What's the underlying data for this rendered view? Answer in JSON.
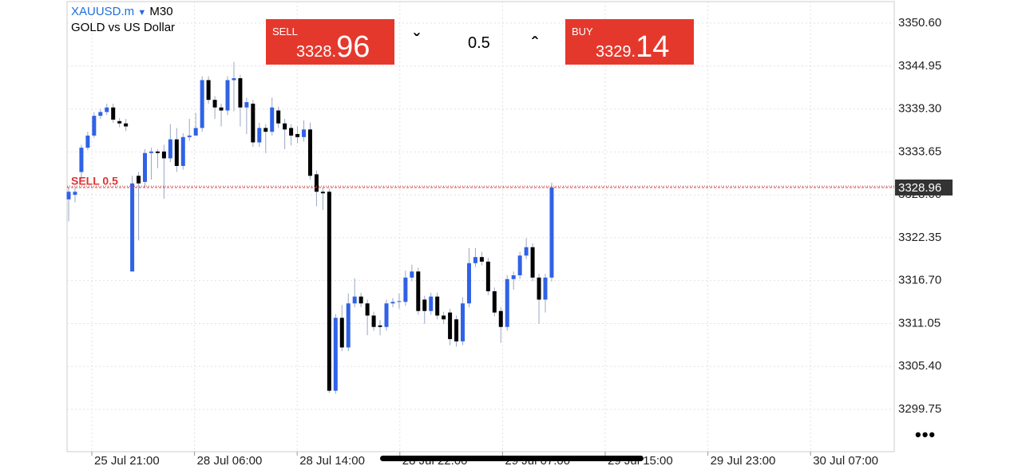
{
  "header": {
    "symbol": "XAUUSD.m",
    "timeframe": "M30",
    "description": "GOLD vs US Dollar"
  },
  "trade_panel": {
    "sell_label": "SELL",
    "sell_price_small": "3328.",
    "sell_price_big": "96",
    "volume": "0.5",
    "buy_label": "BUY",
    "buy_price_small": "3329.",
    "buy_price_big": "14"
  },
  "chart_data": {
    "type": "candlestick",
    "up_color": "#2f62e6",
    "down_color": "#000000",
    "ylim": [
      3294.18,
      3353.44
    ],
    "yticks": [
      {
        "value": 3350.6,
        "label": "3350.60"
      },
      {
        "value": 3344.95,
        "label": "3344.95"
      },
      {
        "value": 3339.3,
        "label": "3339.30"
      },
      {
        "value": 3333.65,
        "label": "3333.65"
      },
      {
        "value": 3328,
        "label": "3328.00"
      },
      {
        "value": 3322.35,
        "label": "3322.35"
      },
      {
        "value": 3316.7,
        "label": "3316.70"
      },
      {
        "value": 3311.05,
        "label": "3311.05"
      },
      {
        "value": 3305.4,
        "label": "3305.40"
      },
      {
        "value": 3299.75,
        "label": "3299.75"
      }
    ],
    "x_labels": [
      "25 Jul 21:00",
      "28 Jul 06:00",
      "28 Jul 14:00",
      "28 Jul 22:00",
      "29 Jul 07:00",
      "29 Jul 15:00",
      "29 Jul 23:00",
      "30 Jul 07:00"
    ],
    "grid": true,
    "sell_line": 3328.96,
    "buy_line": 3329.14,
    "annotation": "SELL 0.5",
    "open": [
      3327.4,
      3328.0,
      3331.0,
      3334.2,
      3335.8,
      3338.4,
      3338.9,
      3339.5,
      3337.7,
      3337.4,
      3317.9,
      3330.5,
      3329.7,
      3333.5,
      3333.7,
      3333.7,
      3332.8,
      3335.3,
      3331.8,
      3335.6,
      3335.8,
      3336.8,
      3343.1,
      3340.5,
      3339.5,
      3339.1,
      3343.1,
      3343.35,
      3339.5,
      3340.0,
      3334.9,
      3336.8,
      3336.3,
      3339.1,
      3337.4,
      3336.8,
      3336.0,
      3335.6,
      3336.6,
      3330.7,
      3328.4,
      3328.4,
      3302.2,
      3311.8,
      3307.9,
      3313.7,
      3314.6,
      3313.7,
      3312.1,
      3310.8,
      3310.6,
      3313.7,
      3313.9,
      3313.9,
      3317.1,
      3317.9,
      3314.2,
      3312.7,
      3314.6,
      3312.1,
      3312.5,
      3311.6,
      3308.7,
      3313.7,
      3319.0,
      3319.8,
      3319.2,
      3315.3,
      3312.7,
      3310.6,
      3316.9,
      3317.4,
      3320.0,
      3321.1,
      3317.1,
      3314.2,
      3317.1
    ],
    "high": [
      3329.0,
      3329.0,
      3334.6,
      3336.3,
      3338.9,
      3339.3,
      3340.0,
      3340.0,
      3338.1,
      3338.0,
      3330.5,
      3331.0,
      3334.0,
      3334.2,
      3334.0,
      3334.6,
      3337.3,
      3336.8,
      3336.1,
      3338.0,
      3338.8,
      3343.6,
      3343.6,
      3341.0,
      3340.0,
      3343.6,
      3345.5,
      3343.8,
      3340.8,
      3340.5,
      3337.5,
      3337.3,
      3340.8,
      3339.6,
      3338.0,
      3337.3,
      3337.0,
      3337.8,
      3337.5,
      3331.2,
      3329.0,
      3328.8,
      3312.3,
      3313.5,
      3315.0,
      3317.0,
      3315.1,
      3314.2,
      3312.6,
      3311.5,
      3314.2,
      3314.4,
      3315.0,
      3318.0,
      3318.8,
      3318.4,
      3314.7,
      3315.1,
      3315.1,
      3312.6,
      3313.0,
      3312.1,
      3314.5,
      3321.0,
      3321.0,
      3320.5,
      3319.7,
      3315.8,
      3313.2,
      3317.4,
      3317.9,
      3320.5,
      3322.3,
      3321.6,
      3317.6,
      3317.6,
      3329.6
    ],
    "low": [
      3324.5,
      3327.0,
      3330.0,
      3333.9,
      3335.5,
      3338.0,
      3338.5,
      3337.5,
      3336.9,
      3336.4,
      3317.9,
      3322.0,
      3329.0,
      3330.0,
      3331.5,
      3327.5,
      3332.3,
      3331.0,
      3331.3,
      3335.1,
      3336.2,
      3336.3,
      3340.0,
      3338.0,
      3337.0,
      3338.5,
      3339.0,
      3337.0,
      3336.0,
      3334.3,
      3334.3,
      3333.5,
      3335.8,
      3336.8,
      3334.0,
      3334.5,
      3334.8,
      3335.0,
      3330.0,
      3326.5,
      3326.0,
      3301.9,
      3301.8,
      3307.4,
      3307.4,
      3313.2,
      3313.2,
      3309.5,
      3310.1,
      3309.5,
      3310.1,
      3313.2,
      3313.0,
      3313.4,
      3316.6,
      3312.2,
      3311.0,
      3312.2,
      3311.6,
      3311.0,
      3308.2,
      3308.0,
      3308.2,
      3313.2,
      3318.5,
      3318.7,
      3314.8,
      3312.0,
      3308.5,
      3310.1,
      3315.5,
      3316.9,
      3319.5,
      3316.6,
      3311.0,
      3312.5,
      3316.6
    ],
    "close": [
      3328.4,
      3328.4,
      3334.2,
      3335.8,
      3338.4,
      3338.9,
      3339.5,
      3337.9,
      3337.4,
      3337.0,
      3329.5,
      3329.5,
      3333.5,
      3333.7,
      3333.5,
      3332.8,
      3335.3,
      3331.8,
      3335.6,
      3335.8,
      3336.8,
      3343.1,
      3340.5,
      3339.5,
      3339.1,
      3343.1,
      3343.35,
      3339.5,
      3340.2,
      3334.9,
      3336.8,
      3336.3,
      3339.5,
      3337.4,
      3336.6,
      3335.8,
      3335.6,
      3336.6,
      3330.5,
      3328.4,
      3328.2,
      3302.2,
      3311.8,
      3307.9,
      3313.7,
      3314.6,
      3313.7,
      3312.1,
      3310.6,
      3310.6,
      3313.7,
      3313.9,
      3314.0,
      3317.1,
      3317.9,
      3312.7,
      3312.7,
      3314.6,
      3312.1,
      3311.6,
      3309.0,
      3308.7,
      3313.7,
      3319.0,
      3319.8,
      3319.2,
      3315.3,
      3312.5,
      3310.6,
      3316.9,
      3317.4,
      3320.0,
      3321.1,
      3317.1,
      3314.2,
      3317.1,
      3328.96
    ]
  }
}
